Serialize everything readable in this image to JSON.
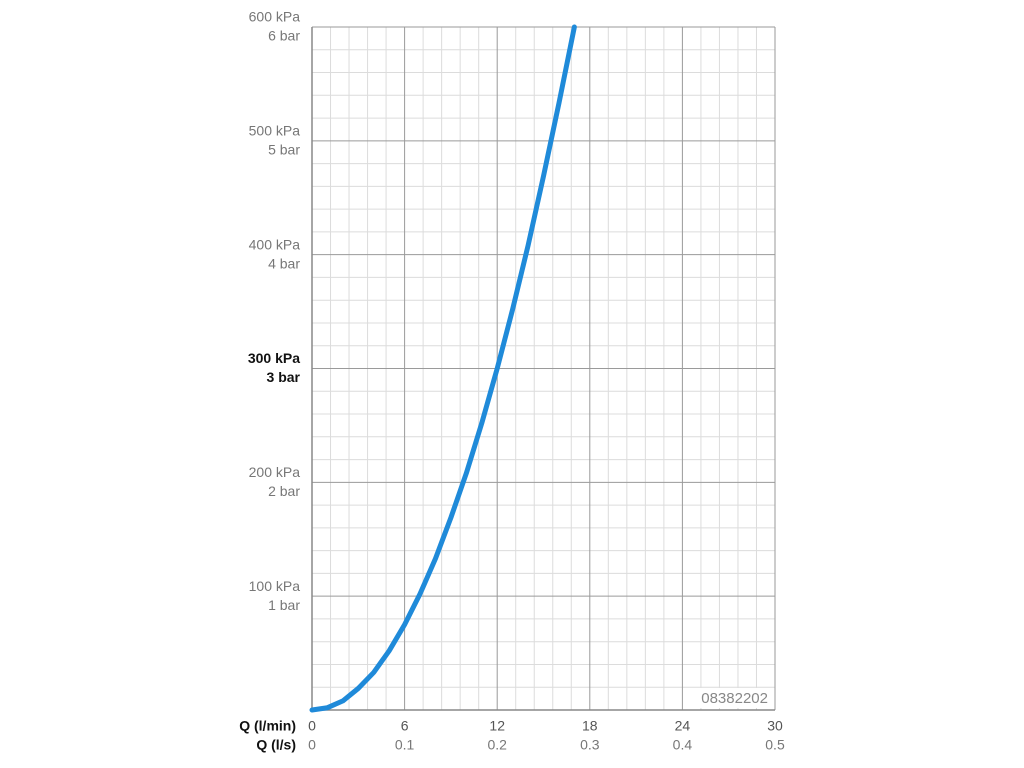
{
  "chart_data": {
    "type": "line",
    "x": [
      0,
      1,
      2,
      3,
      4,
      5,
      6,
      7,
      8,
      9,
      10,
      11,
      12,
      13,
      14,
      15,
      16,
      17
    ],
    "values": [
      0,
      2,
      8,
      19,
      33,
      52,
      75,
      102,
      133,
      169,
      208,
      252,
      300,
      352,
      408,
      469,
      533,
      600
    ],
    "color": "#1f8ad9",
    "xlim": [
      0,
      30
    ],
    "xticks": [
      0,
      6,
      12,
      18,
      24,
      30
    ],
    "x2lim": [
      0,
      0.5
    ],
    "x2ticks": [
      0,
      0.1,
      0.2,
      0.3,
      0.4,
      0.5
    ],
    "xlabel": "Q (l/min)",
    "x2label": "Q (l/s)",
    "xminorticks": [
      1.2,
      2.4,
      3.6,
      4.8,
      7.2,
      8.4,
      9.6,
      10.8,
      13.2,
      14.4,
      15.6,
      16.8,
      19.2,
      20.4,
      21.6,
      22.8,
      25.2,
      26.4,
      27.6,
      28.8
    ],
    "ylim": [
      0,
      600
    ],
    "yticks": [
      {
        "value": 100,
        "label": "100 kPa"
      },
      {
        "value": 200,
        "label": "200 kPa"
      },
      {
        "value": 300,
        "label": "300 kPa"
      },
      {
        "value": 400,
        "label": "400 kPa"
      },
      {
        "value": 500,
        "label": "500 kPa"
      },
      {
        "value": 600,
        "label": "600 kPa"
      }
    ],
    "y2lim": [
      0,
      6
    ],
    "y2ticks": [
      {
        "value": 1,
        "label": "1 bar"
      },
      {
        "value": 2,
        "label": "2 bar"
      },
      {
        "value": 3,
        "label": "3 bar"
      },
      {
        "value": 4,
        "label": "4 bar"
      },
      {
        "value": 5,
        "label": "5 bar"
      },
      {
        "value": 6,
        "label": "6 bar"
      }
    ],
    "yminorticks": [
      20,
      40,
      60,
      80,
      120,
      140,
      160,
      180,
      220,
      240,
      260,
      280,
      320,
      340,
      360,
      380,
      420,
      440,
      460,
      480,
      520,
      540,
      560,
      580
    ],
    "emphasized_ytick": 300,
    "grid": true,
    "annotation": "08382202"
  }
}
